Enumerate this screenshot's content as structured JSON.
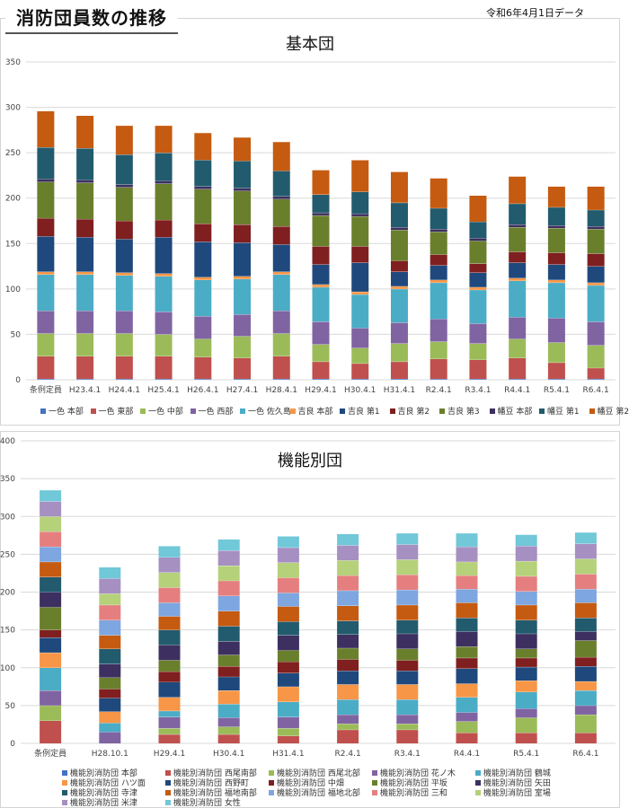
{
  "header": {
    "title": "消防団員数の推移",
    "date_note": "令和6年4月1日データ"
  },
  "chart_data": [
    {
      "type": "bar",
      "stacked": true,
      "title": "基本団",
      "ylim": [
        0,
        350
      ],
      "yticks": [
        0,
        50,
        100,
        150,
        200,
        250,
        300,
        350
      ],
      "grid": true,
      "legend_position": "bottom",
      "categories": [
        "条例定員",
        "H23.4.1",
        "H24.4.1",
        "H25.4.1",
        "H26.4.1",
        "H27.4.1",
        "H28.4.1",
        "H29.4.1",
        "H30.4.1",
        "H31.4.1",
        "R2.4.1",
        "R3.4.1",
        "R4.4.1",
        "R5.4.1",
        "R6.4.1"
      ],
      "series": [
        {
          "name": "一色 本部",
          "color": "#4472c4",
          "values": [
            1,
            1,
            1,
            1,
            1,
            1,
            1,
            1,
            1,
            1,
            1,
            1,
            1,
            1,
            1
          ]
        },
        {
          "name": "一色 東部",
          "color": "#c0504d",
          "values": [
            25,
            25,
            25,
            25,
            24,
            23,
            25,
            19,
            17,
            19,
            22,
            21,
            23,
            18,
            12
          ]
        },
        {
          "name": "一色 中部",
          "color": "#9bbb59",
          "values": [
            25,
            25,
            25,
            24,
            20,
            24,
            25,
            19,
            17,
            20,
            19,
            18,
            21,
            22,
            25
          ]
        },
        {
          "name": "一色 西部",
          "color": "#8064a2",
          "values": [
            25,
            25,
            25,
            25,
            25,
            24,
            25,
            25,
            22,
            23,
            25,
            22,
            24,
            27,
            26
          ]
        },
        {
          "name": "一色 佐久島",
          "color": "#4bacc6",
          "values": [
            40,
            40,
            39,
            39,
            40,
            39,
            40,
            38,
            37,
            37,
            40,
            37,
            40,
            39,
            40
          ]
        },
        {
          "name": "吉良 本部",
          "color": "#f79646",
          "values": [
            3,
            3,
            3,
            3,
            3,
            3,
            3,
            3,
            3,
            3,
            3,
            3,
            3,
            3,
            3
          ]
        },
        {
          "name": "吉良 第1",
          "color": "#1f497d",
          "values": [
            39,
            38,
            37,
            40,
            39,
            37,
            30,
            22,
            32,
            16,
            16,
            16,
            17,
            17,
            18
          ]
        },
        {
          "name": "吉良 第2",
          "color": "#7f1f1f",
          "values": [
            20,
            20,
            20,
            19,
            20,
            20,
            20,
            20,
            18,
            12,
            12,
            10,
            12,
            13,
            14
          ]
        },
        {
          "name": "吉良 第3",
          "color": "#6a7f2c",
          "values": [
            40,
            40,
            37,
            40,
            38,
            37,
            30,
            34,
            33,
            34,
            25,
            25,
            27,
            27,
            27
          ]
        },
        {
          "name": "幡豆 本部",
          "color": "#3d3060",
          "values": [
            3,
            3,
            3,
            3,
            3,
            3,
            3,
            3,
            3,
            3,
            3,
            3,
            3,
            3,
            3
          ]
        },
        {
          "name": "幡豆 第1",
          "color": "#225b6e",
          "values": [
            35,
            35,
            33,
            31,
            29,
            30,
            28,
            20,
            24,
            27,
            23,
            18,
            23,
            20,
            18
          ]
        },
        {
          "name": "幡豆 第2",
          "color": "#c55a11",
          "values": [
            40,
            36,
            32,
            30,
            30,
            26,
            32,
            27,
            35,
            34,
            33,
            29,
            30,
            23,
            26
          ]
        }
      ]
    },
    {
      "type": "bar",
      "stacked": true,
      "title": "機能別団",
      "ylim": [
        0,
        400
      ],
      "yticks": [
        0,
        50,
        100,
        150,
        200,
        250,
        300,
        350,
        400
      ],
      "grid": true,
      "legend_position": "bottom",
      "categories": [
        "条例定員",
        "H28.10.1",
        "H29.4.1",
        "H30.4.1",
        "H31.4.1",
        "R2.4.1",
        "R3.4.1",
        "R4.4.1",
        "R5.4.1",
        "R6.4.1"
      ],
      "series": [
        {
          "name": "機能別消防団 本部",
          "color": "#4472c4",
          "values": [
            0,
            0,
            0,
            0,
            0,
            0,
            0,
            0,
            0,
            0
          ]
        },
        {
          "name": "機能別消防団 西尾南部",
          "color": "#c0504d",
          "values": [
            30,
            0,
            12,
            12,
            10,
            18,
            18,
            14,
            14,
            14
          ]
        },
        {
          "name": "機能別消防団 西尾北部",
          "color": "#9bbb59",
          "values": [
            20,
            0,
            8,
            10,
            10,
            8,
            8,
            15,
            20,
            24
          ]
        },
        {
          "name": "機能別消防団 花ノ木",
          "color": "#8064a2",
          "values": [
            20,
            15,
            15,
            12,
            15,
            12,
            12,
            12,
            12,
            12
          ]
        },
        {
          "name": "機能別消防団 鶴城",
          "color": "#4bacc6",
          "values": [
            30,
            12,
            8,
            18,
            20,
            20,
            20,
            20,
            22,
            20
          ]
        },
        {
          "name": "機能別消防団 ハツ面",
          "color": "#f79646",
          "values": [
            20,
            15,
            18,
            18,
            20,
            20,
            20,
            18,
            15,
            12
          ]
        },
        {
          "name": "機能別消防団 西野町",
          "color": "#1f497d",
          "values": [
            20,
            18,
            20,
            18,
            18,
            18,
            18,
            20,
            18,
            20
          ]
        },
        {
          "name": "機能別消防団 中畑",
          "color": "#7f1f1f",
          "values": [
            10,
            12,
            14,
            14,
            15,
            15,
            14,
            14,
            12,
            12
          ]
        },
        {
          "name": "機能別消防団 平坂",
          "color": "#6a7f2c",
          "values": [
            30,
            15,
            15,
            15,
            15,
            15,
            15,
            15,
            12,
            22
          ]
        },
        {
          "name": "機能別消防団 矢田",
          "color": "#3d3060",
          "values": [
            20,
            18,
            20,
            18,
            20,
            18,
            20,
            20,
            20,
            12
          ]
        },
        {
          "name": "機能別消防団 寺津",
          "color": "#225b6e",
          "values": [
            20,
            20,
            20,
            20,
            18,
            18,
            18,
            18,
            18,
            18
          ]
        },
        {
          "name": "機能別消防団 福地南部",
          "color": "#c55a11",
          "values": [
            20,
            18,
            18,
            20,
            20,
            20,
            20,
            20,
            20,
            20
          ]
        },
        {
          "name": "機能別消防団 福地北部",
          "color": "#7ea6e0",
          "values": [
            20,
            20,
            18,
            20,
            18,
            20,
            20,
            18,
            18,
            18
          ]
        },
        {
          "name": "機能別消防団 三和",
          "color": "#e57f7f",
          "values": [
            20,
            20,
            20,
            20,
            20,
            20,
            20,
            18,
            20,
            20
          ]
        },
        {
          "name": "機能別消防団 室場",
          "color": "#b5d17a",
          "values": [
            20,
            15,
            20,
            20,
            20,
            20,
            20,
            18,
            20,
            20
          ]
        },
        {
          "name": "機能別消防団 米津",
          "color": "#a690c2",
          "values": [
            20,
            20,
            20,
            20,
            20,
            20,
            20,
            20,
            20,
            20
          ]
        },
        {
          "name": "機能別消防団 女性",
          "color": "#70c8d8",
          "values": [
            15,
            15,
            15,
            15,
            15,
            15,
            15,
            18,
            15,
            15
          ]
        }
      ]
    }
  ]
}
